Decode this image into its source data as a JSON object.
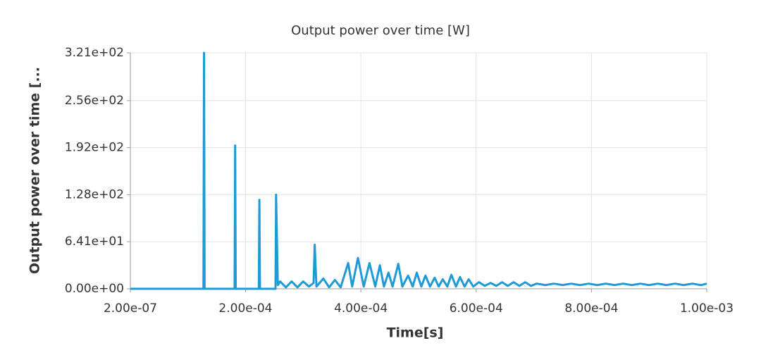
{
  "chart_data": {
    "type": "line",
    "title": "Output power over time [W]",
    "x_label": "Time[s]",
    "y_label": "Output power over time [...",
    "x": [
      2e-07,
      0.000127,
      0.000128,
      0.000129,
      0.000181,
      0.000182,
      0.000183,
      0.000223,
      0.000224,
      0.000225,
      0.000252,
      0.000253,
      0.000256,
      0.00026,
      0.00027,
      0.00028,
      0.00029,
      0.0003,
      0.00031,
      0.000318,
      0.00032,
      0.000323,
      0.000335,
      0.000345,
      0.000355,
      0.000365,
      0.000378,
      0.000385,
      0.000395,
      0.000405,
      0.000415,
      0.000425,
      0.000433,
      0.00044,
      0.000448,
      0.000455,
      0.000465,
      0.000472,
      0.000482,
      0.00049,
      0.000497,
      0.000505,
      0.000512,
      0.00052,
      0.000528,
      0.000535,
      0.000542,
      0.00055,
      0.000557,
      0.000565,
      0.000572,
      0.00058,
      0.000587,
      0.000595,
      0.000605,
      0.000615,
      0.000625,
      0.000635,
      0.000645,
      0.000655,
      0.000665,
      0.000675,
      0.000685,
      0.000695,
      0.000705,
      0.00072,
      0.000735,
      0.00075,
      0.000765,
      0.00078,
      0.000795,
      0.00081,
      0.000825,
      0.00084,
      0.000855,
      0.00087,
      0.000885,
      0.0009,
      0.000915,
      0.00093,
      0.000945,
      0.00096,
      0.000975,
      0.00099,
      0.001
    ],
    "series": [
      {
        "name": "Output power",
        "color": "#1e9bd7",
        "values": [
          0,
          0,
          321,
          0,
          0,
          195,
          0,
          0,
          121,
          0,
          0,
          128,
          5,
          10,
          2,
          10,
          2,
          10,
          3,
          8,
          60,
          3,
          14,
          2,
          12,
          2,
          35,
          3,
          42,
          3,
          35,
          3,
          32,
          3,
          22,
          3,
          34,
          3,
          18,
          3,
          22,
          3,
          18,
          3,
          15,
          3,
          13,
          3,
          19,
          3,
          16,
          3,
          13,
          3,
          9,
          4,
          8,
          4,
          9,
          4,
          9,
          4,
          9,
          4,
          7,
          5,
          7,
          5,
          7,
          5,
          7,
          5,
          7,
          5,
          7,
          5,
          7,
          5,
          7,
          5,
          7,
          5,
          7,
          5,
          7
        ]
      }
    ],
    "xlim": [
      2e-07,
      0.001
    ],
    "xticks": [
      {
        "value": 2e-07,
        "label": "2.00e-07"
      },
      {
        "value": 0.0002,
        "label": "2.00e-04"
      },
      {
        "value": 0.0004,
        "label": "4.00e-04"
      },
      {
        "value": 0.0006,
        "label": "6.00e-04"
      },
      {
        "value": 0.0008,
        "label": "8.00e-04"
      },
      {
        "value": 0.001,
        "label": "1.00e-03"
      }
    ],
    "ylim": [
      0,
      321
    ],
    "yticks": [
      {
        "value": 0,
        "label": "0.00e+00"
      },
      {
        "value": 64.1,
        "label": "6.41e+01"
      },
      {
        "value": 128,
        "label": "1.28e+02"
      },
      {
        "value": 192,
        "label": "1.92e+02"
      },
      {
        "value": 256,
        "label": "2.56e+02"
      },
      {
        "value": 321,
        "label": "3.21e+02"
      }
    ],
    "grid": true
  }
}
